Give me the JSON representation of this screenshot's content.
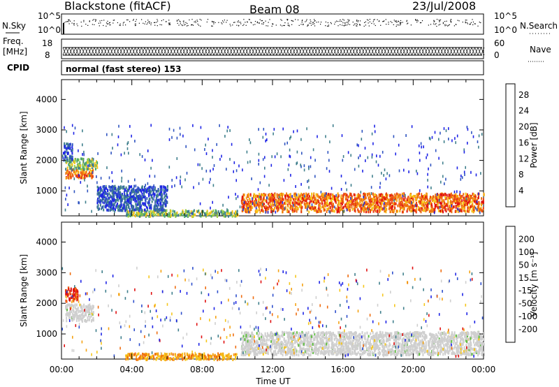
{
  "header": {
    "station": "Blackstone (fitACF)",
    "beam": "Beam 08",
    "date": "23/Jul/2008"
  },
  "strip": {
    "nsky_label": "N.Sky",
    "nsky_ticks": [
      "10^5",
      "10^0"
    ],
    "nsearch_label": "N.Search",
    "nsearch_ticks": [
      "10^5",
      "10^0"
    ],
    "freq_label": "Freq.",
    "freq_unit": "[MHz]",
    "freq_ticks": [
      "18",
      "8"
    ],
    "nave_label": "Nave",
    "nave_ticks": [
      "60",
      "0"
    ],
    "cpid_label": "CPID",
    "cpid_text": "normal (fast stereo) 153"
  },
  "chart_data": [
    {
      "type": "heatmap",
      "name": "power",
      "ylabel": "Slant Range [km]",
      "yticks": [
        1000,
        2000,
        3000,
        4000
      ],
      "ylim": [
        180,
        4650
      ],
      "xlim": [
        0,
        24
      ],
      "colorbar": {
        "label": "Power [dB]",
        "ticks": [
          "4",
          "8",
          "12",
          "16",
          "20",
          "24",
          "28"
        ],
        "colors": [
          "#1e24e6",
          "#2f54c0",
          "#3f7f8c",
          "#4da868",
          "#9bcf43",
          "#f6c61b",
          "#f5a212",
          "#ef6d10",
          "#e83a10",
          "#e01010"
        ]
      },
      "regions": [
        {
          "x": [
            0.2,
            1.8
          ],
          "y": [
            1450,
            1750
          ],
          "level": "high"
        },
        {
          "x": [
            0.2,
            2.0
          ],
          "y": [
            1750,
            2100
          ],
          "level": "mid"
        },
        {
          "x": [
            0.1,
            0.6
          ],
          "y": [
            2100,
            2600
          ],
          "level": "low"
        },
        {
          "x": [
            10.2,
            24
          ],
          "y": [
            350,
            950
          ],
          "level": "high"
        },
        {
          "x": [
            3.6,
            10
          ],
          "y": [
            200,
            400
          ],
          "level": "mid"
        },
        {
          "x": [
            2,
            6
          ],
          "y": [
            400,
            1200
          ],
          "level": "low"
        }
      ]
    },
    {
      "type": "heatmap",
      "name": "velocity",
      "ylabel": "Slant Range [km]",
      "yticks": [
        1000,
        2000,
        3000,
        4000
      ],
      "ylim": [
        180,
        4650
      ],
      "xlim": [
        0,
        24
      ],
      "xticks": [
        "00:00",
        "04:00",
        "08:00",
        "12:00",
        "16:00",
        "20:00",
        "00:00"
      ],
      "xlabel": "Time UT",
      "colorbar": {
        "label": "Velocity [m s⁻¹]",
        "ticks": [
          "200",
          "100",
          "50",
          "15",
          "-15",
          "-50",
          "-100",
          "-200"
        ],
        "colors": [
          "#1e24e6",
          "#2e4fcc",
          "#3f7f8c",
          "#5fbf3f",
          "#cfcfcf",
          "#f6c61b",
          "#f5a212",
          "#ef6d10",
          "#e01010"
        ]
      },
      "regions": [
        {
          "x": [
            0.2,
            1.8
          ],
          "y": [
            1450,
            2000
          ],
          "level": "gray"
        },
        {
          "x": [
            0.2,
            0.9
          ],
          "y": [
            2100,
            2550
          ],
          "level": "red"
        },
        {
          "x": [
            10.2,
            24
          ],
          "y": [
            350,
            1100
          ],
          "level": "gray"
        },
        {
          "x": [
            3.6,
            10
          ],
          "y": [
            200,
            400
          ],
          "level": "orange"
        }
      ]
    }
  ]
}
